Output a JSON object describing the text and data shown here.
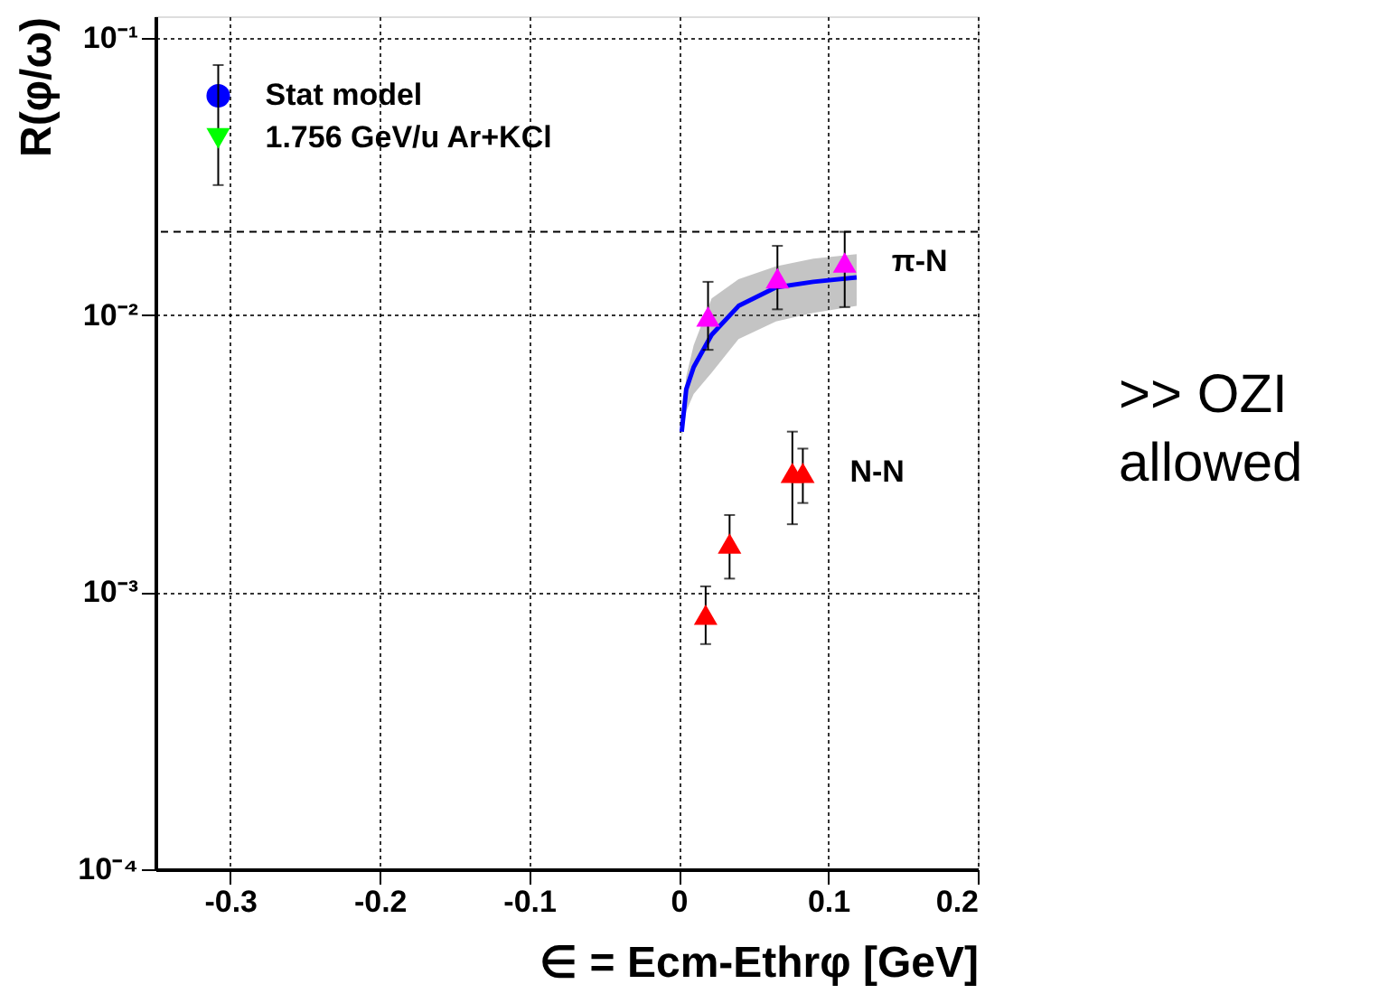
{
  "chart_data": {
    "type": "scatter",
    "xlabel": "∈ = Ecm-Ethrφ  [GeV]",
    "ylabel": "R(φ/ω)",
    "xlim": [
      -0.35,
      0.2
    ],
    "xticks": [
      -0.3,
      -0.2,
      -0.1,
      0,
      0.1,
      0.2
    ],
    "ylim": [
      0.0001,
      0.12
    ],
    "yticks": [
      {
        "value": 0.0001,
        "label": "10⁻⁴"
      },
      {
        "value": 0.001,
        "label": "10⁻³"
      },
      {
        "value": 0.01,
        "label": "10⁻²"
      },
      {
        "value": 0.1,
        "label": "10⁻¹"
      }
    ],
    "log": "y",
    "grid": true,
    "legend": false,
    "series": [
      {
        "name": "Stat model",
        "marker": "circle",
        "color": "#0000ff",
        "x": [
          -0.308
        ],
        "values": [
          0.062
        ]
      },
      {
        "name": "1.756 GeV/u Ar+KCl",
        "marker": "triangle-down",
        "color": "#00ff00",
        "x": [
          -0.308
        ],
        "values": [
          0.0435
        ],
        "errors": [
          [
            0.0295,
            0.08
          ]
        ]
      },
      {
        "type": "line",
        "color": "#0000ff",
        "line_style": "solid",
        "x": [
          0.002,
          0.005,
          0.01,
          0.022,
          0.04,
          0.065,
          0.09,
          0.119
        ],
        "values": [
          0.0038,
          0.0054,
          0.0065,
          0.0085,
          0.0108,
          0.0126,
          0.0132,
          0.0137
        ],
        "lower": [
          0.0036,
          0.0045,
          0.0052,
          0.0062,
          0.0082,
          0.0095,
          0.0102,
          0.0108
        ],
        "upper": [
          0.0039,
          0.006,
          0.0078,
          0.0115,
          0.0135,
          0.015,
          0.016,
          0.0166
        ]
      },
      {
        "name": "π-N",
        "marker": "triangle",
        "color": "#ff00ff",
        "x": [
          0.0196,
          0.066,
          0.111
        ],
        "values": [
          0.0099,
          0.0136,
          0.0155
        ],
        "errors": [
          [
            0.0075,
            0.0132
          ],
          [
            0.0105,
            0.0178
          ],
          [
            0.0107,
            0.02
          ]
        ]
      },
      {
        "name": "N-N",
        "marker": "triangle",
        "color": "#ff0000",
        "x": [
          0.018,
          0.034,
          0.076,
          0.083
        ],
        "values": [
          0.00083,
          0.0015,
          0.0027,
          0.0027
        ],
        "errors": [
          [
            0.00065,
            0.00105
          ],
          [
            0.00112,
            0.0019
          ],
          [
            0.00176,
            0.0038
          ],
          [
            0.0021,
            0.0033
          ]
        ]
      }
    ],
    "ref_lines": [
      {
        "axis": "y",
        "value": 0.02,
        "color": "#000000",
        "line_style": "dashed"
      }
    ],
    "annotations": [
      ">> OZI\nallowed"
    ]
  }
}
